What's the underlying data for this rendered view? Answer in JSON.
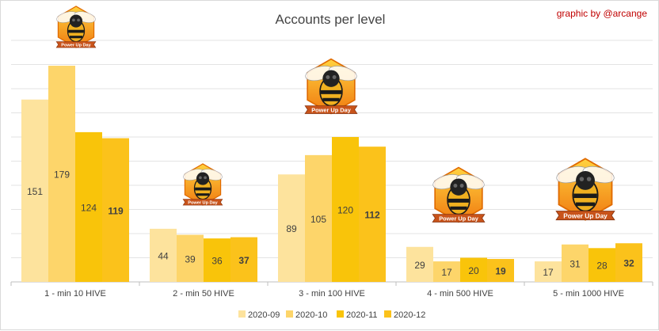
{
  "credit": "graphic by @arcange",
  "badge_label": "Power Up Day",
  "chart_data": {
    "type": "bar",
    "title": "Accounts per level",
    "xlabel": "",
    "ylabel": "",
    "ylim": [
      0,
      200
    ],
    "grid": true,
    "legend_position": "bottom",
    "categories": [
      "1 - min 10 HIVE",
      "2 - min 50 HIVE",
      "3 - min 100 HIVE",
      "4 - min 500 HIVE",
      "5 - min 1000 HIVE"
    ],
    "series": [
      {
        "name": "2020-09",
        "color": "#fde39d",
        "values": [
          151,
          44,
          89,
          29,
          17
        ]
      },
      {
        "name": "2020-10",
        "color": "#fdd56a",
        "values": [
          179,
          39,
          105,
          17,
          31
        ]
      },
      {
        "name": "2020-11",
        "color": "#f9c40a",
        "values": [
          124,
          36,
          120,
          20,
          28
        ]
      },
      {
        "name": "2020-12",
        "color": "#fbc21b",
        "values": [
          119,
          37,
          112,
          19,
          32
        ]
      }
    ],
    "highlight_series": "2020-12"
  }
}
